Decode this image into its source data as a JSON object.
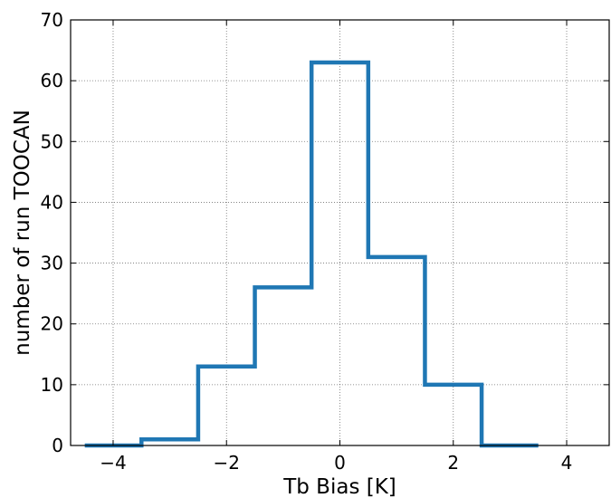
{
  "chart_data": {
    "type": "step",
    "title": "",
    "xlabel": "Tb Bias [K]",
    "ylabel": "number of run TOOCAN",
    "xlim": [
      -4.75,
      4.75
    ],
    "ylim": [
      0,
      70
    ],
    "xticks": [
      -4,
      -2,
      0,
      2,
      4
    ],
    "xtick_labels": [
      "−4",
      "−2",
      "0",
      "2",
      "4"
    ],
    "yticks": [
      0,
      10,
      20,
      30,
      40,
      50,
      60,
      70
    ],
    "ytick_labels": [
      "0",
      "10",
      "20",
      "30",
      "40",
      "50",
      "60",
      "70"
    ],
    "grid": true,
    "series": [
      {
        "color": "#1f77b4",
        "bin_edges": [
          -4.5,
          -3.5,
          -2.5,
          -1.5,
          -0.5,
          0.5,
          1.5,
          2.5,
          3.5
        ],
        "values": [
          0,
          1,
          13,
          26,
          63,
          31,
          10,
          0
        ]
      }
    ]
  }
}
